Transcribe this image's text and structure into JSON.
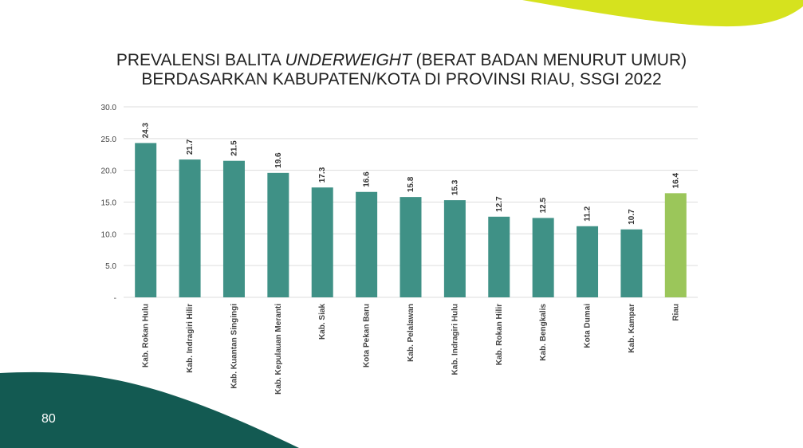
{
  "slide": {
    "page_number": "80"
  },
  "colors": {
    "bar": "#3f9186",
    "highlight": "#9bc65a",
    "dark_green": "#135a52",
    "lime": "#d6e21e",
    "grid": "#dddddd",
    "axis_text": "#444444"
  },
  "chart_data": {
    "type": "bar",
    "title": {
      "line1_pre": "PREVALENSI BALITA ",
      "line1_italic": "UNDERWEIGHT",
      "line1_post": " (BERAT BADAN MENURUT UMUR)",
      "line2": "BERDASARKAN KABUPATEN/KOTA DI PROVINSI RIAU, SSGI 2022"
    },
    "categories": [
      "Kab. Rokan Hulu",
      "Kab. Indragiri Hilir",
      "Kab. Kuantan Singingi",
      "Kab. Kepulauan Meranti",
      "Kab. Siak",
      "Kota Pekan Baru",
      "Kab. Pelalawan",
      "Kab. Indragiri Hulu",
      "Kab. Rokan Hilir",
      "Kab. Bengkalis",
      "Kota Dumai",
      "Kab. Kampar",
      "Riau"
    ],
    "values": [
      24.3,
      21.7,
      21.5,
      19.6,
      17.3,
      16.6,
      15.8,
      15.3,
      12.7,
      12.5,
      11.2,
      10.7,
      16.4
    ],
    "value_labels": [
      "24.3",
      "21.7",
      "21.5",
      "19.6",
      "17.3",
      "16.6",
      "15.8",
      "15.3",
      "12.7",
      "12.5",
      "11.2",
      "10.7",
      "16.4"
    ],
    "highlight_category": "Riau",
    "ylim": [
      0,
      30
    ],
    "yticks": [
      0,
      5,
      10,
      15,
      20,
      25,
      30
    ],
    "ytick_labels": [
      "-",
      "5.0",
      "10.0",
      "15.0",
      "20.0",
      "25.0",
      "30.0"
    ],
    "grid": true,
    "legend": "none"
  }
}
